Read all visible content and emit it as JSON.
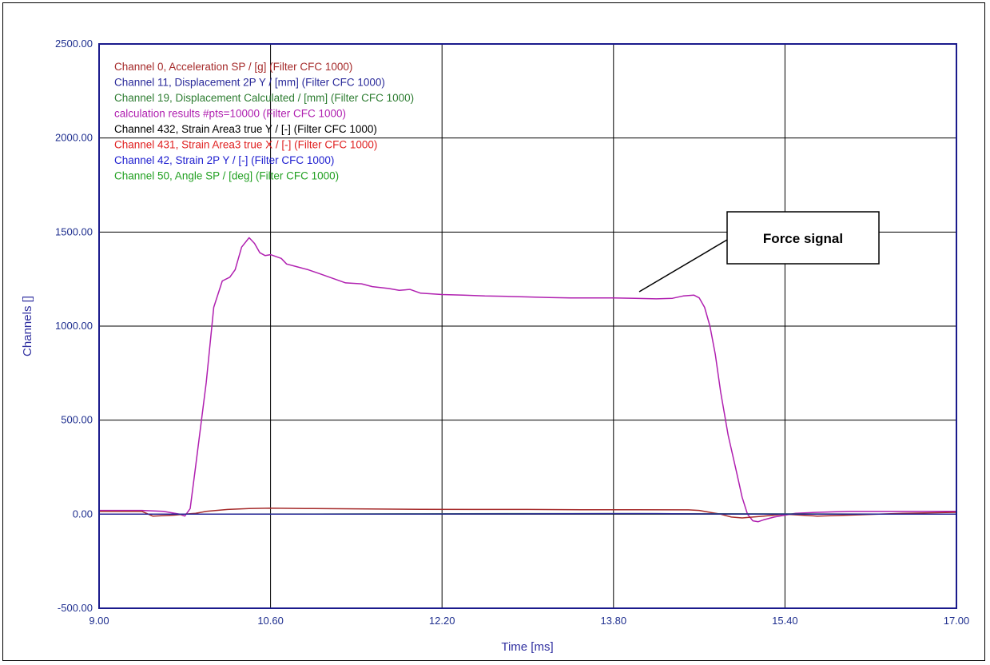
{
  "chart_data": {
    "type": "line",
    "xlabel": "Time [ms]",
    "ylabel": "Channels []",
    "xlim": [
      9.0,
      17.0
    ],
    "ylim": [
      -500,
      2500
    ],
    "xticks": [
      "9.00",
      "10.60",
      "12.20",
      "13.80",
      "15.40",
      "17.00"
    ],
    "yticks": [
      "-500.00",
      "0.00",
      "500.00",
      "1000.00",
      "1500.00",
      "2000.00",
      "2500.00"
    ],
    "grid": true,
    "legend_position": "top-left",
    "legend": [
      {
        "label": "Channel 0, Acceleration SP / [g] (Filter CFC 1000)",
        "color": "#a52a2a"
      },
      {
        "label": "Channel 11, Displacement 2P  Y / [mm] (Filter CFC 1000)",
        "color": "#2a2a9a"
      },
      {
        "label": "Channel 19, Displacement Calculated / [mm] (Filter CFC 1000)",
        "color": "#2e7d32"
      },
      {
        "label": "calculation results #pts=10000 (Filter CFC 1000)",
        "color": "#b020b0"
      },
      {
        "label": "Channel 432, Strain Area3 true Y / [-] (Filter CFC 1000)",
        "color": "#000000"
      },
      {
        "label": "Channel 431, Strain Area3 true X / [-] (Filter CFC 1000)",
        "color": "#e02020"
      },
      {
        "label": "Channel 42, Strain 2P  Y / [-] (Filter CFC 1000)",
        "color": "#2020d0"
      },
      {
        "label": "Channel 50, Angle SP / [deg] (Filter CFC 1000)",
        "color": "#22a022"
      }
    ],
    "annotation": "Force signal",
    "series": [
      {
        "name": "calculation results #pts=10000 (Filter CFC 1000)",
        "color": "#b020b0",
        "x": [
          9.0,
          9.4,
          9.6,
          9.75,
          9.8,
          9.85,
          9.9,
          10.0,
          10.07,
          10.15,
          10.22,
          10.27,
          10.33,
          10.4,
          10.45,
          10.5,
          10.55,
          10.6,
          10.7,
          10.75,
          10.85,
          10.95,
          11.05,
          11.15,
          11.3,
          11.45,
          11.55,
          11.7,
          11.8,
          11.9,
          12.0,
          12.2,
          12.4,
          12.6,
          12.8,
          13.0,
          13.2,
          13.4,
          13.6,
          13.8,
          14.0,
          14.2,
          14.35,
          14.45,
          14.55,
          14.6,
          14.65,
          14.7,
          14.75,
          14.8,
          14.87,
          14.95,
          15.0,
          15.05,
          15.1,
          15.15,
          15.2,
          15.3,
          15.4,
          15.5,
          15.7,
          16.0,
          16.5,
          17.0
        ],
        "y": [
          20,
          20,
          15,
          0,
          -10,
          30,
          250,
          700,
          1100,
          1240,
          1260,
          1300,
          1420,
          1470,
          1440,
          1390,
          1375,
          1380,
          1360,
          1330,
          1315,
          1300,
          1280,
          1260,
          1230,
          1225,
          1210,
          1200,
          1190,
          1195,
          1175,
          1168,
          1165,
          1160,
          1158,
          1155,
          1152,
          1150,
          1150,
          1150,
          1148,
          1145,
          1148,
          1160,
          1165,
          1150,
          1100,
          1000,
          850,
          650,
          420,
          220,
          90,
          0,
          -35,
          -40,
          -30,
          -15,
          -5,
          5,
          10,
          15,
          15,
          15
        ]
      },
      {
        "name": "Channel 0, Acceleration SP / [g] (Filter CFC 1000)",
        "color": "#a52a2a",
        "x": [
          9.0,
          9.4,
          9.5,
          9.7,
          9.8,
          9.9,
          10.0,
          10.2,
          10.4,
          10.6,
          11.0,
          11.5,
          12.0,
          12.5,
          13.0,
          13.5,
          14.0,
          14.5,
          14.6,
          14.7,
          14.8,
          14.9,
          15.0,
          15.2,
          15.4,
          15.7,
          16.0,
          16.5,
          17.0
        ],
        "y": [
          15,
          15,
          -10,
          -5,
          0,
          5,
          15,
          25,
          30,
          32,
          30,
          28,
          26,
          25,
          25,
          24,
          24,
          23,
          20,
          10,
          0,
          -15,
          -20,
          -10,
          0,
          -10,
          -5,
          5,
          10
        ]
      },
      {
        "name": "Channel 19, Displacement Calculated / [mm] (Filter CFC 1000)",
        "color": "#2e7d32",
        "x": [
          9.0,
          10.0,
          11.0,
          12.0,
          13.0,
          14.0,
          15.0,
          16.0,
          17.0
        ],
        "y": [
          0,
          0,
          1,
          2,
          3,
          3,
          2,
          1,
          0
        ]
      },
      {
        "name": "Channel 11, Displacement 2P  Y / [mm] (Filter CFC 1000)",
        "color": "#2a2a9a",
        "x": [
          9.0,
          10.0,
          11.0,
          12.0,
          13.0,
          13.8,
          14.2,
          14.5,
          15.0,
          16.0,
          17.0
        ],
        "y": [
          0,
          0,
          0,
          1,
          2,
          3,
          3,
          2,
          1,
          0,
          0
        ]
      }
    ]
  }
}
